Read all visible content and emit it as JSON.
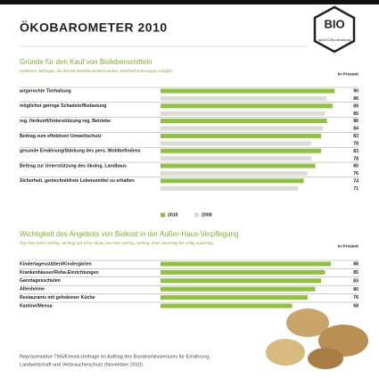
{
  "title": "ÖKOBAROMETER 2010",
  "logo": {
    "mark": "BIO",
    "caption": "nach EG-Öko-Verordnung"
  },
  "footnote": [
    "Repräsentative TNS/Emnid-Umfrage im Auftrag des Bundesministeriums für Ernährung,",
    "Landwirtschaft und Verbraucherschutz (November 2010)."
  ],
  "chart_data": [
    {
      "type": "hbar",
      "title": "Gründe für den Kauf von Biolebensmitteln",
      "subtitle": "Selektion: Befragte, die derzeit Biolebensmittel kaufen, Mehrfachnennungen möglich",
      "unit": "in Prozent",
      "categories": [
        "artgerechte Tierhaltung",
        "möglichst geringe Schadstoffbelastung",
        "reg. Herkunft/Unterstützung reg. Betriebe",
        "Beitrag zum effektiven Umweltschutz",
        "gesunde Ernährung/Stärkung des pers. Wohlbefindens",
        "Beitrag zur Unterstützung des ökolog. Landbaus",
        "Sicherheit, gentechnikfreie Lebensmittel zu erhalten"
      ],
      "series": [
        {
          "name": "2010",
          "color": "#8fc23f",
          "values": [
            90,
            89,
            86,
            83,
            83,
            80,
            74
          ]
        },
        {
          "name": "2008",
          "color": "#dcdcd6",
          "values": [
            86,
            85,
            84,
            78,
            78,
            76,
            71
          ]
        }
      ]
    },
    {
      "type": "hbar",
      "title": "Wichtigkeit des Angebots von Biokost in der Außer-Haus-Verpflegung",
      "subtitle": "Top-Two (sehr wichtig, wichtig) auf einer Skala von sehr wichtig, wichtig, eher unwichtig bis völlig unwichtig",
      "unit": "in Prozent",
      "categories": [
        "Kindertagesstätten/Kindergärten",
        "Krankenhäuser/Reha-Einrichtungen",
        "Ganztagesschulen",
        "Altenheime",
        "Restaurants mit gehobener Küche",
        "Kantine/Mensa"
      ],
      "color": "#8fc23f",
      "values": [
        88,
        85,
        83,
        80,
        76,
        68
      ]
    }
  ]
}
